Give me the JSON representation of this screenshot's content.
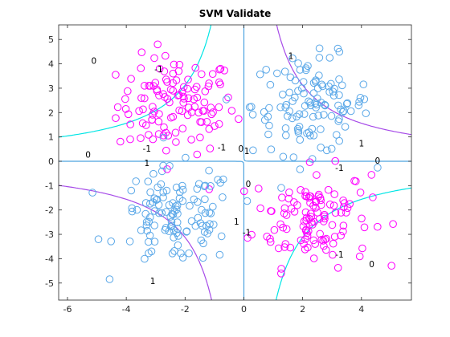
{
  "chart_data": {
    "type": "scatter",
    "title": "SVM Validate",
    "xlabel": "",
    "ylabel": "",
    "xlim": [
      -6.3,
      5.7
    ],
    "ylim": [
      -5.7,
      5.6
    ],
    "xticks": [
      -6,
      -4,
      -2,
      0,
      2,
      4
    ],
    "yticks": [
      5,
      4,
      3,
      2,
      1,
      0,
      -1,
      -2,
      -3,
      -4,
      -5
    ],
    "grid": false,
    "series": [
      {
        "color": "#ff00ff",
        "marker": "open-circle",
        "clusters": [
          {
            "center": [
              -2.3,
              2.3
            ],
            "spread": 1.0,
            "count": 120
          },
          {
            "center": [
              2.3,
              -2.3
            ],
            "spread": 1.0,
            "count": 120
          }
        ]
      },
      {
        "color": "#5ba8e8",
        "marker": "open-circle",
        "clusters": [
          {
            "center": [
              2.3,
              2.3
            ],
            "spread": 1.0,
            "count": 120
          },
          {
            "center": [
              -2.3,
              -2.3
            ],
            "spread": 1.0,
            "count": 120
          }
        ]
      }
    ],
    "contours": [
      {
        "level": "0",
        "color": "#4da3df",
        "labels": [
          {
            "text": "0",
            "x": -5.1,
            "y": 4.1
          },
          {
            "text": "0",
            "x": -5.3,
            "y": 0.25
          },
          {
            "text": "0",
            "x": 4.55,
            "y": 0.0
          },
          {
            "text": "0",
            "x": 4.35,
            "y": -4.25
          },
          {
            "text": "0",
            "x": -0.1,
            "y": 0.5
          },
          {
            "text": "0",
            "x": 0.15,
            "y": -0.95
          }
        ]
      },
      {
        "level": "-1",
        "color": "#00e5e5",
        "labels": [
          {
            "text": "-1",
            "x": -2.9,
            "y": 3.75
          },
          {
            "text": "-1",
            "x": -3.3,
            "y": 0.5
          },
          {
            "text": "-1",
            "x": -0.75,
            "y": 0.55
          },
          {
            "text": "-1",
            "x": 3.25,
            "y": -0.3
          },
          {
            "text": "-1",
            "x": 3.25,
            "y": -3.85
          },
          {
            "text": "-1",
            "x": 0.1,
            "y": -2.95
          }
        ]
      },
      {
        "level": "1",
        "color": "#a64ae8",
        "labels": [
          {
            "text": "1",
            "x": 1.6,
            "y": 4.3
          },
          {
            "text": "1",
            "x": 4.0,
            "y": 0.7
          },
          {
            "text": "1",
            "x": -3.3,
            "y": -0.1
          },
          {
            "text": "1",
            "x": -3.1,
            "y": -4.95
          },
          {
            "text": "1",
            "x": -0.25,
            "y": -2.5
          },
          {
            "text": "1",
            "x": 0.1,
            "y": 0.4
          }
        ]
      }
    ]
  }
}
